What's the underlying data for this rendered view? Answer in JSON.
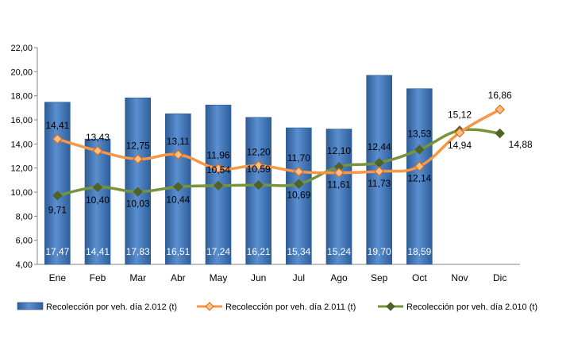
{
  "chart_data": {
    "type": "bar",
    "categories": [
      "Ene",
      "Feb",
      "Mar",
      "Abr",
      "May",
      "Jun",
      "Jul",
      "Ago",
      "Sep",
      "Oct",
      "Nov",
      "Dic"
    ],
    "series": [
      {
        "name": "Recolección por veh. día 2.012 (t)",
        "type": "bar",
        "values": [
          17.47,
          14.41,
          17.83,
          16.51,
          17.24,
          16.21,
          15.34,
          15.24,
          19.7,
          18.59,
          null,
          null
        ],
        "labels": [
          "17,47",
          "14,41",
          "17,83",
          "16,51",
          "17,24",
          "16,21",
          "15,34",
          "15,24",
          "19,70",
          "18,59",
          "",
          ""
        ],
        "color": "#4F81BD"
      },
      {
        "name": "Recolección por veh. día 2.011 (t)",
        "type": "line",
        "values": [
          14.41,
          13.43,
          12.75,
          13.11,
          11.96,
          12.2,
          11.7,
          11.61,
          11.73,
          12.14,
          14.94,
          16.86
        ],
        "labels": [
          "14,41",
          "13,43",
          "12,75",
          "13,11",
          "11,96",
          "12,20",
          "11,70",
          "11,61",
          "11,73",
          "12,14",
          "14,94",
          "16,86"
        ],
        "color": "#F79646"
      },
      {
        "name": "Recolección por veh. día 2.010 (t)",
        "type": "line",
        "values": [
          9.71,
          10.4,
          10.03,
          10.44,
          10.54,
          10.59,
          10.69,
          12.1,
          12.44,
          13.53,
          15.12,
          14.88
        ],
        "labels": [
          "9,71",
          "10,40",
          "10,03",
          "10,44",
          "10,54",
          "10,59",
          "10,69",
          "12,10",
          "12,44",
          "13,53",
          "15,12",
          "14,88"
        ],
        "color": "#77933C"
      }
    ],
    "y_ticks": [
      "4,00",
      "6,00",
      "8,00",
      "10,00",
      "12,00",
      "14,00",
      "16,00",
      "18,00",
      "20,00",
      "22,00"
    ],
    "ylim": [
      4,
      22
    ],
    "legend_position": "bottom",
    "grid": false
  }
}
